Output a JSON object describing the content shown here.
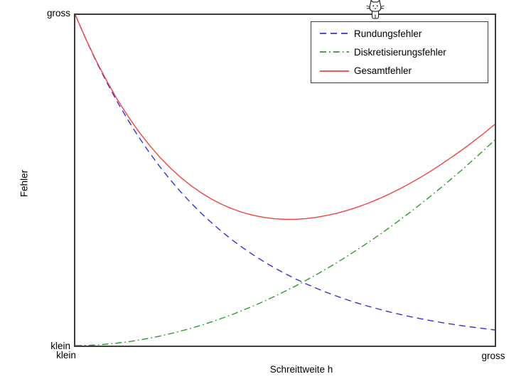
{
  "figure": {
    "background": "#ffffff",
    "axis_color": "#3d3d3d",
    "text_color": "#000000"
  },
  "labels": {
    "y_axis_title": "Fehler",
    "x_axis_title": "Schreittweite h",
    "y_tick_top": "gross",
    "y_tick_bottom": "klein",
    "x_tick_left": "klein",
    "x_tick_right": "gross"
  },
  "legend": {
    "items": [
      {
        "label": "Rundungsfehler",
        "color": "#3232d8",
        "style": "dashed"
      },
      {
        "label": "Diskretisierungsfehler",
        "color": "#2e9b2e",
        "style": "dashdot"
      },
      {
        "label": "Gesamtfehler",
        "color": "#f24242",
        "style": "solid"
      }
    ]
  },
  "decoration": {
    "cat_icon": "pixel-art white cat sitting on top plot border"
  },
  "chart_data": {
    "type": "line",
    "title": "",
    "xlabel": "Schreittweite h",
    "ylabel": "Fehler",
    "x_axis": {
      "min_label": "klein",
      "max_label": "gross",
      "scale": "qualitative",
      "range": [
        0,
        1
      ]
    },
    "y_axis": {
      "min_label": "klein",
      "max_label": "gross",
      "scale": "qualitative",
      "range": [
        0,
        1
      ]
    },
    "grid": false,
    "legend_position": "top-right-inside",
    "x0": 0,
    "dx": 0.025,
    "series": [
      {
        "name": "Rundungsfehler",
        "color": "#3232d8",
        "style": "dashed",
        "values": [
          1,
          0.9266,
          0.8586,
          0.7956,
          0.7371,
          0.683,
          0.6329,
          0.5864,
          0.5434,
          0.5035,
          0.4665,
          0.4323,
          0.4005,
          0.3711,
          0.3439,
          0.3186,
          0.2952,
          0.2736,
          0.2535,
          0.2349,
          0.2176,
          0.2017,
          0.1868,
          0.1731,
          0.1604,
          0.1486,
          0.1377,
          0.1276,
          0.1182,
          0.1096,
          0.1015,
          0.0941,
          0.0872,
          0.0808,
          0.0748,
          0.0693,
          0.0643,
          0.0595,
          0.0552,
          0.0511,
          0.0474
        ]
      },
      {
        "name": "Diskretisierungsfehler",
        "color": "#2e9b2e",
        "style": "dashdot",
        "values": [
          0,
          0.0005,
          0.002,
          0.0043,
          0.0075,
          0.0115,
          0.0163,
          0.0219,
          0.0283,
          0.0354,
          0.0434,
          0.0521,
          0.0616,
          0.0718,
          0.0828,
          0.0945,
          0.107,
          0.1202,
          0.1342,
          0.1488,
          0.1642,
          0.1803,
          0.1972,
          0.2148,
          0.2331,
          0.2521,
          0.2718,
          0.2922,
          0.3133,
          0.3352,
          0.3577,
          0.381,
          0.4049,
          0.4296,
          0.4549,
          0.481,
          0.5077,
          0.5351,
          0.5632,
          0.592,
          0.6215
        ]
      },
      {
        "name": "Gesamtfehler",
        "color": "#f24242",
        "style": "solid",
        "values": [
          1,
          0.9271,
          0.8606,
          0.7999,
          0.7446,
          0.6945,
          0.6492,
          0.6083,
          0.5717,
          0.5389,
          0.5099,
          0.4844,
          0.4621,
          0.4429,
          0.4267,
          0.4131,
          0.4022,
          0.3938,
          0.3877,
          0.3837,
          0.3818,
          0.382,
          0.384,
          0.3879,
          0.3935,
          0.4007,
          0.4095,
          0.4198,
          0.4315,
          0.4448,
          0.4592,
          0.4751,
          0.4921,
          0.5104,
          0.5297,
          0.5503,
          0.572,
          0.5946,
          0.6184,
          0.6431,
          0.6689
        ]
      }
    ]
  }
}
